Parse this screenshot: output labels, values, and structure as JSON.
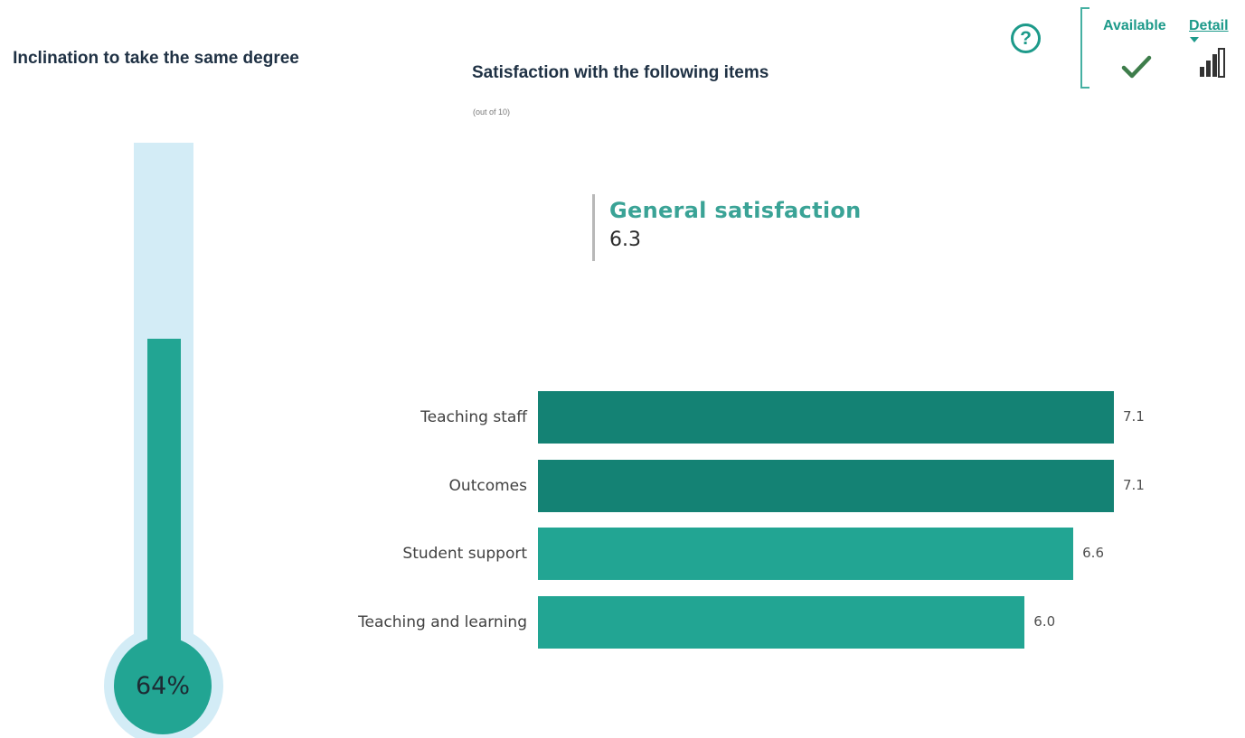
{
  "thermometer": {
    "title": "Inclination to take the same degree",
    "value_label": "64%",
    "fraction": 0.64,
    "fill_color": "#22a593",
    "track_color": "#d3ecf6"
  },
  "header": {
    "help_symbol": "?",
    "available_label": "Available",
    "detail_label": "Detail",
    "icons": [
      "help-icon",
      "checkmark-icon",
      "bar-chart-icon"
    ]
  },
  "kpi": {
    "label": "General satisfaction",
    "value": "6.3"
  },
  "chart_data": {
    "type": "bar",
    "orientation": "horizontal",
    "title": "Satisfaction with the following items",
    "subtitle": "(out of 10)",
    "categories": [
      "Teaching staff",
      "Outcomes",
      "Student support",
      "Teaching and learning"
    ],
    "values": [
      7.1,
      7.1,
      6.6,
      6.0
    ],
    "value_labels": [
      "7.1",
      "7.1",
      "6.6",
      "6.0"
    ],
    "xlim": [
      0,
      7.1
    ],
    "grid": false,
    "bar_colors": [
      "#148274",
      "#148274",
      "#22a593",
      "#22a593"
    ]
  }
}
